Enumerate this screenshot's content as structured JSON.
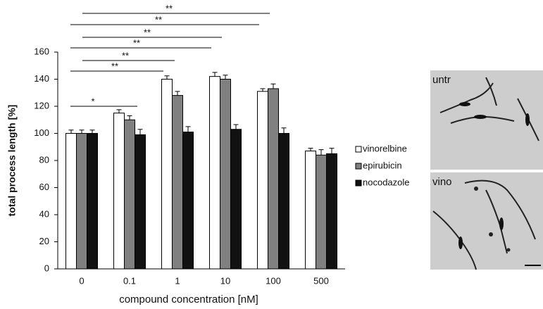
{
  "chart_data": {
    "type": "bar",
    "y_label": "total process length [%]",
    "x_label": "compound concentration [nM]",
    "categories": [
      "0",
      "0.1",
      "1",
      "10",
      "100",
      "500"
    ],
    "series": [
      {
        "name": "vinorelbine",
        "color": "#ffffff",
        "values": [
          100,
          115,
          140,
          142,
          131,
          87
        ],
        "errors": [
          2.5,
          2.5,
          2.5,
          3,
          2,
          2
        ]
      },
      {
        "name": "epirubicin",
        "color": "#808080",
        "values": [
          100,
          110,
          128,
          140,
          133,
          84
        ],
        "errors": [
          2.5,
          3,
          3,
          3,
          3.5,
          4
        ]
      },
      {
        "name": "nocodazole",
        "color": "#111111",
        "values": [
          100,
          99,
          101,
          103,
          100,
          85
        ],
        "errors": [
          2.5,
          4,
          4,
          3.5,
          4,
          4
        ]
      }
    ],
    "ylim": [
      0,
      160
    ],
    "yticks": [
      0,
      20,
      40,
      60,
      80,
      100,
      120,
      140,
      160
    ],
    "annotations": [
      "*",
      "**",
      "**",
      "**",
      "**",
      "**",
      "**"
    ]
  },
  "images": [
    {
      "label": "untr"
    },
    {
      "label": "vino"
    }
  ]
}
